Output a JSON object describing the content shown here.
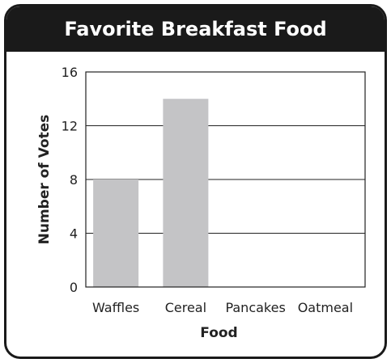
{
  "chart_data": {
    "type": "bar",
    "title": "Favorite Breakfast Food",
    "xlabel": "Food",
    "ylabel": "Number of Votes",
    "categories": [
      "Waffles",
      "Cereal",
      "Pancakes",
      "Oatmeal"
    ],
    "values": [
      8,
      14,
      0,
      0
    ],
    "ylim": [
      0,
      16
    ],
    "yticks": [
      "0",
      "4",
      "8",
      "12",
      "16"
    ],
    "grid": true,
    "bar_color": "#c4c4c6",
    "title_bar_color": "#1a1a1a",
    "legend": "none"
  }
}
